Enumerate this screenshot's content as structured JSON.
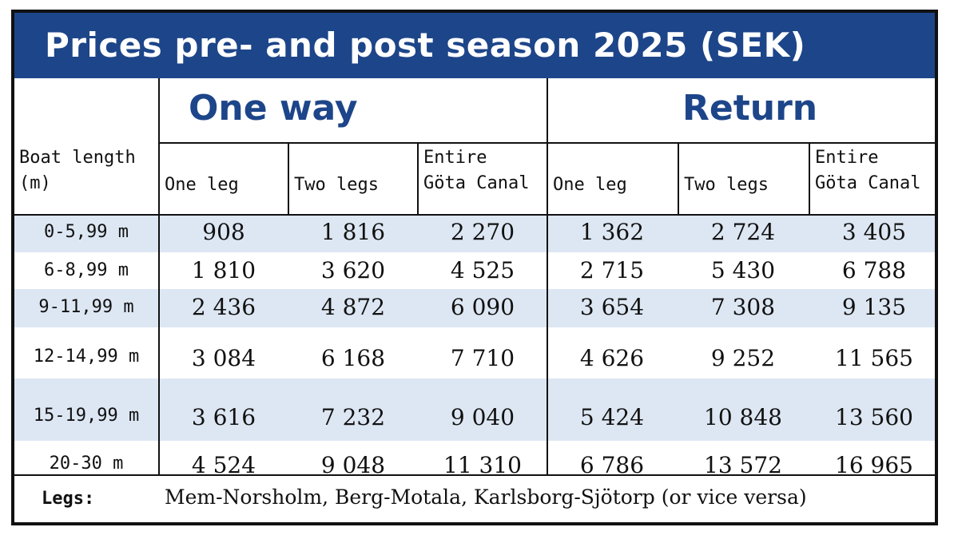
{
  "title": "Prices pre- and post season 2025 (SEK)",
  "groups": {
    "one_way": "One way",
    "return": "Return"
  },
  "headers": {
    "boat_length_line1": "Boat length",
    "boat_length_line2": "(m)",
    "one_way": {
      "one_leg": "One leg",
      "two_legs": "Two legs",
      "entire_line1": "Entire",
      "entire_line2": "Göta Canal"
    },
    "return": {
      "one_leg": "One leg",
      "two_legs": "Two legs",
      "entire_line1": "Entire",
      "entire_line2": "Göta Canal"
    }
  },
  "rows": [
    {
      "length": "0-5,99 m",
      "values": [
        "908",
        "1 816",
        "2 270",
        "1 362",
        "2 724",
        "3 405"
      ]
    },
    {
      "length": "6-8,99 m",
      "values": [
        "1 810",
        "3 620",
        "4 525",
        "2 715",
        "5 430",
        "6 788"
      ]
    },
    {
      "length": "9-11,99 m",
      "values": [
        "2 436",
        "4 872",
        "6 090",
        "3 654",
        "7 308",
        "9 135"
      ]
    },
    {
      "length": "12-14,99 m",
      "values": [
        "3 084",
        "6 168",
        "7 710",
        "4 626",
        "9 252",
        "11 565"
      ]
    },
    {
      "length": "15-19,99 m",
      "values": [
        "3 616",
        "7 232",
        "9 040",
        "5 424",
        "10 848",
        "13 560"
      ]
    },
    {
      "length": "20-30 m",
      "values": [
        "4 524",
        "9 048",
        "11 310",
        "6 786",
        "13 572",
        "16 965"
      ]
    }
  ],
  "footer": {
    "label": "Legs:",
    "text": "Mem-Norsholm, Berg-Motala, Karlsborg-Sjötorp (or vice versa)"
  },
  "colors": {
    "title_bg": "#1d4589",
    "group_text": "#1d4589",
    "band": "#dde7f3"
  }
}
